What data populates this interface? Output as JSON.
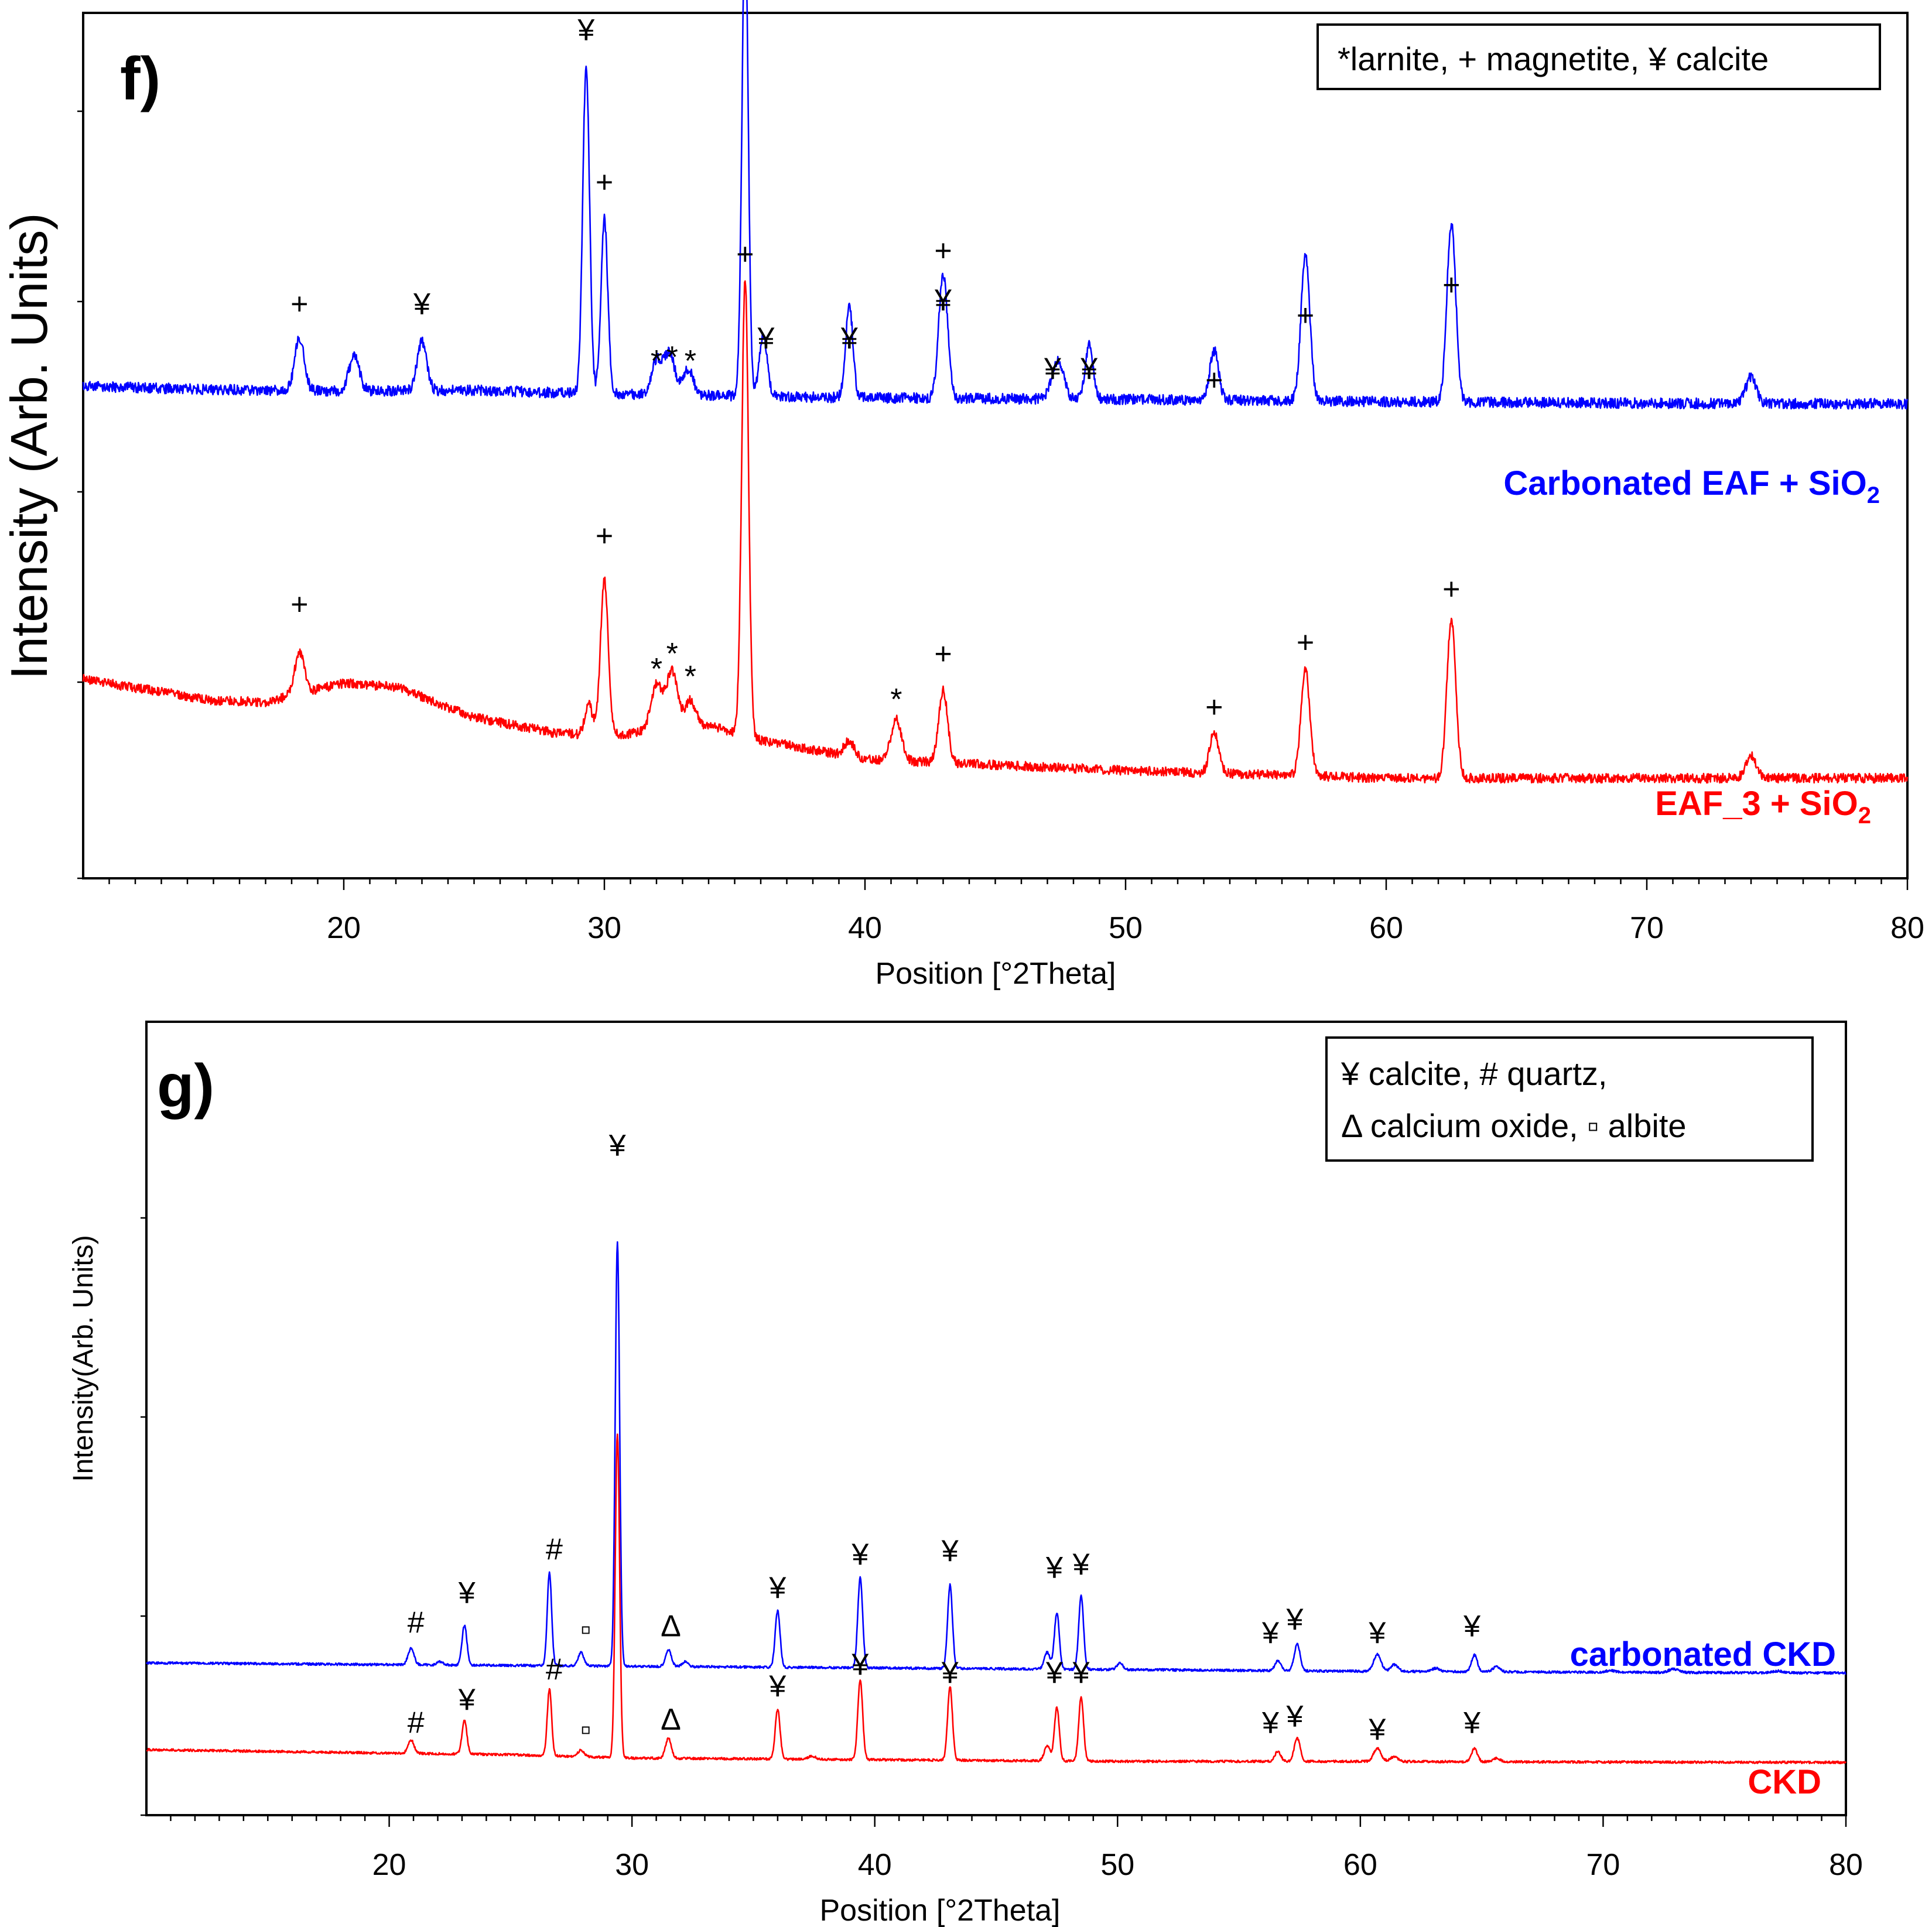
{
  "chart_data": [
    {
      "type": "line",
      "panel_label": "f)",
      "xlabel": "Position [°2Theta]",
      "ylabel": "Intensity (Arb. Units)",
      "xlim": [
        10,
        80
      ],
      "x_ticks": [
        20,
        30,
        40,
        50,
        60,
        70,
        80
      ],
      "legend": "*larnite, + magnetite, ¥ calcite",
      "legend_position": "top-right",
      "series": [
        {
          "name": "Carbonated EAF + SiO",
          "name_subscript": "2",
          "color": "#0000ff",
          "baseline": [
            [
              10,
              0.0
            ],
            [
              15,
              -0.04
            ],
            [
              20,
              -0.06
            ],
            [
              25,
              -0.05
            ],
            [
              30,
              -0.1
            ],
            [
              40,
              -0.15
            ],
            [
              50,
              -0.17
            ],
            [
              60,
              -0.2
            ],
            [
              70,
              -0.22
            ],
            [
              80,
              -0.23
            ]
          ],
          "peaks": [
            {
              "x": 18.3,
              "h": 0.7,
              "w": 0.18
            },
            {
              "x": 20.4,
              "h": 0.45,
              "w": 0.2
            },
            {
              "x": 23.0,
              "h": 0.65,
              "w": 0.18
            },
            {
              "x": 29.3,
              "h": 4.3,
              "w": 0.13
            },
            {
              "x": 30.0,
              "h": 2.3,
              "w": 0.13
            },
            {
              "x": 32.0,
              "h": 0.45,
              "w": 0.2
            },
            {
              "x": 32.5,
              "h": 0.55,
              "w": 0.2
            },
            {
              "x": 33.2,
              "h": 0.35,
              "w": 0.2
            },
            {
              "x": 35.4,
              "h": 6.2,
              "w": 0.12
            },
            {
              "x": 36.1,
              "h": 0.8,
              "w": 0.15
            },
            {
              "x": 39.4,
              "h": 1.2,
              "w": 0.14
            },
            {
              "x": 43.0,
              "h": 1.65,
              "w": 0.17
            },
            {
              "x": 47.4,
              "h": 0.5,
              "w": 0.22
            },
            {
              "x": 48.6,
              "h": 0.7,
              "w": 0.15
            },
            {
              "x": 53.4,
              "h": 0.65,
              "w": 0.17
            },
            {
              "x": 56.9,
              "h": 1.9,
              "w": 0.17
            },
            {
              "x": 62.5,
              "h": 2.35,
              "w": 0.17
            },
            {
              "x": 74.0,
              "h": 0.35,
              "w": 0.2
            }
          ],
          "markers": [
            {
              "x": 18.3,
              "y": 0.95,
              "label": "+"
            },
            {
              "x": 23.0,
              "y": 0.95,
              "label": "¥"
            },
            {
              "x": 29.3,
              "y": 4.55,
              "label": "¥"
            },
            {
              "x": 30.0,
              "y": 2.55,
              "label": "+"
            },
            {
              "x": 32.0,
              "y": 0.2,
              "label": "*"
            },
            {
              "x": 32.6,
              "y": 0.25,
              "label": "*"
            },
            {
              "x": 33.3,
              "y": 0.2,
              "label": "*"
            },
            {
              "x": 36.3,
              "y": 6.25,
              "label": "+"
            },
            {
              "x": 36.2,
              "y": 0.5,
              "label": "¥"
            },
            {
              "x": 39.4,
              "y": 0.5,
              "label": "¥"
            },
            {
              "x": 43.0,
              "y": 1.0,
              "label": "¥"
            },
            {
              "x": 43.0,
              "y": 1.65,
              "label": "+"
            },
            {
              "x": 47.2,
              "y": 0.1,
              "label": "¥"
            },
            {
              "x": 48.6,
              "y": 0.1,
              "label": "¥"
            },
            {
              "x": 53.4,
              "y": -0.05,
              "label": "+"
            },
            {
              "x": 56.9,
              "y": 0.8,
              "label": "+"
            },
            {
              "x": 62.5,
              "y": 1.2,
              "label": "+"
            }
          ]
        },
        {
          "name": "EAF_3 + SiO",
          "name_subscript": "2",
          "color": "#ff0000",
          "baseline": [
            [
              10,
              0.0
            ],
            [
              15,
              -0.28
            ],
            [
              17,
              -0.3
            ],
            [
              20,
              -0.05
            ],
            [
              22,
              -0.1
            ],
            [
              25,
              -0.5
            ],
            [
              28,
              -0.7
            ],
            [
              30,
              -0.75
            ],
            [
              34,
              -0.6
            ],
            [
              36,
              -0.8
            ],
            [
              40,
              -1.05
            ],
            [
              50,
              -1.2
            ],
            [
              60,
              -1.3
            ],
            [
              70,
              -1.3
            ],
            [
              80,
              -1.3
            ]
          ],
          "peaks": [
            {
              "x": 18.3,
              "h": 0.55,
              "w": 0.18
            },
            {
              "x": 29.4,
              "h": 0.4,
              "w": 0.15
            },
            {
              "x": 30.0,
              "h": 2.05,
              "w": 0.15
            },
            {
              "x": 32.0,
              "h": 0.6,
              "w": 0.22
            },
            {
              "x": 32.6,
              "h": 0.75,
              "w": 0.22
            },
            {
              "x": 33.3,
              "h": 0.35,
              "w": 0.2
            },
            {
              "x": 35.4,
              "h": 6.0,
              "w": 0.13
            },
            {
              "x": 39.4,
              "h": 0.2,
              "w": 0.2
            },
            {
              "x": 41.2,
              "h": 0.55,
              "w": 0.2
            },
            {
              "x": 43.0,
              "h": 0.95,
              "w": 0.17
            },
            {
              "x": 53.4,
              "h": 0.55,
              "w": 0.17
            },
            {
              "x": 56.9,
              "h": 1.4,
              "w": 0.17
            },
            {
              "x": 62.5,
              "h": 2.1,
              "w": 0.17
            },
            {
              "x": 74.0,
              "h": 0.3,
              "w": 0.2
            }
          ],
          "markers": [
            {
              "x": 18.3,
              "y": 0.85,
              "label": "+"
            },
            {
              "x": 30.0,
              "y": 1.75,
              "label": "+"
            },
            {
              "x": 32.0,
              "y": 0.0,
              "label": "*"
            },
            {
              "x": 32.6,
              "y": 0.2,
              "label": "*"
            },
            {
              "x": 33.3,
              "y": -0.1,
              "label": "*"
            },
            {
              "x": 35.4,
              "y": 5.45,
              "label": "+"
            },
            {
              "x": 41.2,
              "y": -0.4,
              "label": "*"
            },
            {
              "x": 43.0,
              "y": 0.2,
              "label": "+"
            },
            {
              "x": 53.4,
              "y": -0.5,
              "label": "+"
            },
            {
              "x": 56.9,
              "y": 0.35,
              "label": "+"
            },
            {
              "x": 62.5,
              "y": 1.05,
              "label": "+"
            }
          ]
        }
      ]
    },
    {
      "type": "line",
      "panel_label": "g)",
      "xlabel": "Position [°2Theta]",
      "ylabel": "Intensity(Arb. Units)",
      "xlim": [
        10,
        80
      ],
      "x_ticks": [
        20,
        30,
        40,
        50,
        60,
        70,
        80
      ],
      "legend": [
        "¥ calcite, # quartz,",
        "Δ calcium oxide, ▫ albite"
      ],
      "legend_position": "top-right",
      "series": [
        {
          "name": "carbonated CKD",
          "color": "#0000ff",
          "baseline": [
            [
              10,
              0.0
            ],
            [
              20,
              -0.05
            ],
            [
              30,
              -0.1
            ],
            [
              40,
              -0.15
            ],
            [
              50,
              -0.2
            ],
            [
              60,
              -0.25
            ],
            [
              70,
              -0.28
            ],
            [
              80,
              -0.3
            ]
          ],
          "peaks": [
            {
              "x": 20.9,
              "h": 0.5,
              "w": 0.12
            },
            {
              "x": 22.1,
              "h": 0.1,
              "w": 0.12
            },
            {
              "x": 23.1,
              "h": 1.2,
              "w": 0.1
            },
            {
              "x": 26.6,
              "h": 2.8,
              "w": 0.09
            },
            {
              "x": 27.9,
              "h": 0.4,
              "w": 0.12
            },
            {
              "x": 29.4,
              "h": 12.7,
              "w": 0.09
            },
            {
              "x": 31.5,
              "h": 0.5,
              "w": 0.12
            },
            {
              "x": 32.2,
              "h": 0.15,
              "w": 0.12
            },
            {
              "x": 36.0,
              "h": 1.7,
              "w": 0.1
            },
            {
              "x": 39.4,
              "h": 2.7,
              "w": 0.1
            },
            {
              "x": 43.1,
              "h": 2.5,
              "w": 0.1
            },
            {
              "x": 47.1,
              "h": 0.5,
              "w": 0.12
            },
            {
              "x": 47.5,
              "h": 1.7,
              "w": 0.1
            },
            {
              "x": 48.5,
              "h": 2.2,
              "w": 0.1
            },
            {
              "x": 50.1,
              "h": 0.2,
              "w": 0.12
            },
            {
              "x": 56.6,
              "h": 0.3,
              "w": 0.12
            },
            {
              "x": 57.4,
              "h": 0.8,
              "w": 0.12
            },
            {
              "x": 60.7,
              "h": 0.5,
              "w": 0.15
            },
            {
              "x": 61.4,
              "h": 0.2,
              "w": 0.15
            },
            {
              "x": 63.1,
              "h": 0.1,
              "w": 0.15
            },
            {
              "x": 64.7,
              "h": 0.5,
              "w": 0.12
            },
            {
              "x": 65.6,
              "h": 0.15,
              "w": 0.15
            },
            {
              "x": 70.3,
              "h": 0.05,
              "w": 0.2
            },
            {
              "x": 72.9,
              "h": 0.1,
              "w": 0.2
            },
            {
              "x": 77.2,
              "h": 0.05,
              "w": 0.2
            }
          ],
          "markers": [
            {
              "x": 21.1,
              "y": 0.9,
              "label": "#"
            },
            {
              "x": 23.2,
              "y": 1.8,
              "label": "¥"
            },
            {
              "x": 26.8,
              "y": 3.1,
              "label": "#"
            },
            {
              "x": 28.1,
              "y": 0.7,
              "label": "▫"
            },
            {
              "x": 29.4,
              "y": 15.2,
              "label": "¥"
            },
            {
              "x": 31.6,
              "y": 0.8,
              "label": "Δ"
            },
            {
              "x": 36.0,
              "y": 1.95,
              "label": "¥"
            },
            {
              "x": 39.4,
              "y": 2.95,
              "label": "¥"
            },
            {
              "x": 43.1,
              "y": 3.05,
              "label": "¥"
            },
            {
              "x": 47.4,
              "y": 2.55,
              "label": "¥"
            },
            {
              "x": 48.5,
              "y": 2.65,
              "label": "¥"
            },
            {
              "x": 56.3,
              "y": 0.6,
              "label": "¥"
            },
            {
              "x": 57.3,
              "y": 1.0,
              "label": "¥"
            },
            {
              "x": 60.7,
              "y": 0.6,
              "label": "¥"
            },
            {
              "x": 64.6,
              "y": 0.8,
              "label": "¥"
            }
          ]
        },
        {
          "name": "CKD",
          "color": "#ff0000",
          "baseline": [
            [
              10,
              -2.6
            ],
            [
              15,
              -2.65
            ],
            [
              20,
              -2.7
            ],
            [
              25,
              -2.75
            ],
            [
              30,
              -2.85
            ],
            [
              40,
              -2.9
            ],
            [
              50,
              -2.95
            ],
            [
              60,
              -2.95
            ],
            [
              70,
              -2.97
            ],
            [
              80,
              -2.98
            ]
          ],
          "peaks": [
            {
              "x": 20.9,
              "h": 0.4,
              "w": 0.12
            },
            {
              "x": 23.1,
              "h": 1.0,
              "w": 0.1
            },
            {
              "x": 26.6,
              "h": 2.0,
              "w": 0.09
            },
            {
              "x": 27.9,
              "h": 0.2,
              "w": 0.12
            },
            {
              "x": 29.4,
              "h": 9.7,
              "w": 0.09
            },
            {
              "x": 31.5,
              "h": 0.6,
              "w": 0.12
            },
            {
              "x": 36.0,
              "h": 1.5,
              "w": 0.1
            },
            {
              "x": 37.4,
              "h": 0.1,
              "w": 0.15
            },
            {
              "x": 39.4,
              "h": 2.4,
              "w": 0.1
            },
            {
              "x": 43.1,
              "h": 2.2,
              "w": 0.1
            },
            {
              "x": 47.1,
              "h": 0.45,
              "w": 0.12
            },
            {
              "x": 47.5,
              "h": 1.6,
              "w": 0.1
            },
            {
              "x": 48.5,
              "h": 1.9,
              "w": 0.1
            },
            {
              "x": 56.6,
              "h": 0.3,
              "w": 0.12
            },
            {
              "x": 57.4,
              "h": 0.7,
              "w": 0.12
            },
            {
              "x": 60.7,
              "h": 0.4,
              "w": 0.15
            },
            {
              "x": 61.4,
              "h": 0.15,
              "w": 0.15
            },
            {
              "x": 64.7,
              "h": 0.4,
              "w": 0.12
            },
            {
              "x": 65.6,
              "h": 0.1,
              "w": 0.15
            }
          ],
          "markers": [
            {
              "x": 21.1,
              "y": -2.1,
              "label": "#"
            },
            {
              "x": 23.2,
              "y": -1.4,
              "label": "¥"
            },
            {
              "x": 26.8,
              "y": -0.5,
              "label": "#"
            },
            {
              "x": 28.1,
              "y": -2.3,
              "label": "▫"
            },
            {
              "x": 31.6,
              "y": -2.0,
              "label": "Δ"
            },
            {
              "x": 36.0,
              "y": -1.0,
              "label": "¥"
            },
            {
              "x": 39.4,
              "y": -0.35,
              "label": "¥"
            },
            {
              "x": 43.1,
              "y": -0.6,
              "label": "¥"
            },
            {
              "x": 47.4,
              "y": -0.6,
              "label": "¥"
            },
            {
              "x": 48.5,
              "y": -0.6,
              "label": "¥"
            },
            {
              "x": 56.3,
              "y": -2.1,
              "label": "¥"
            },
            {
              "x": 57.3,
              "y": -1.9,
              "label": "¥"
            },
            {
              "x": 60.7,
              "y": -2.3,
              "label": "¥"
            },
            {
              "x": 64.6,
              "y": -2.1,
              "label": "¥"
            }
          ]
        }
      ]
    }
  ]
}
